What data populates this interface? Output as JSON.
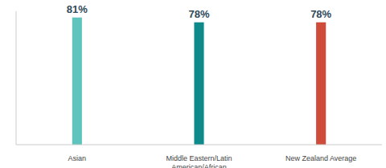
{
  "chart_data": {
    "type": "bar",
    "categories": [
      "Asian",
      "Middle Eastern/Latin American/African",
      "New Zealand Average"
    ],
    "values": [
      81,
      78,
      78
    ],
    "value_labels": [
      "81%",
      "78%",
      "78%"
    ],
    "colors": [
      "#5ec4bd",
      "#0f8a8a",
      "#cf4c3a"
    ],
    "ylim": [
      0,
      85
    ],
    "grid": false,
    "data_labels": true,
    "tick_labels": "x"
  }
}
